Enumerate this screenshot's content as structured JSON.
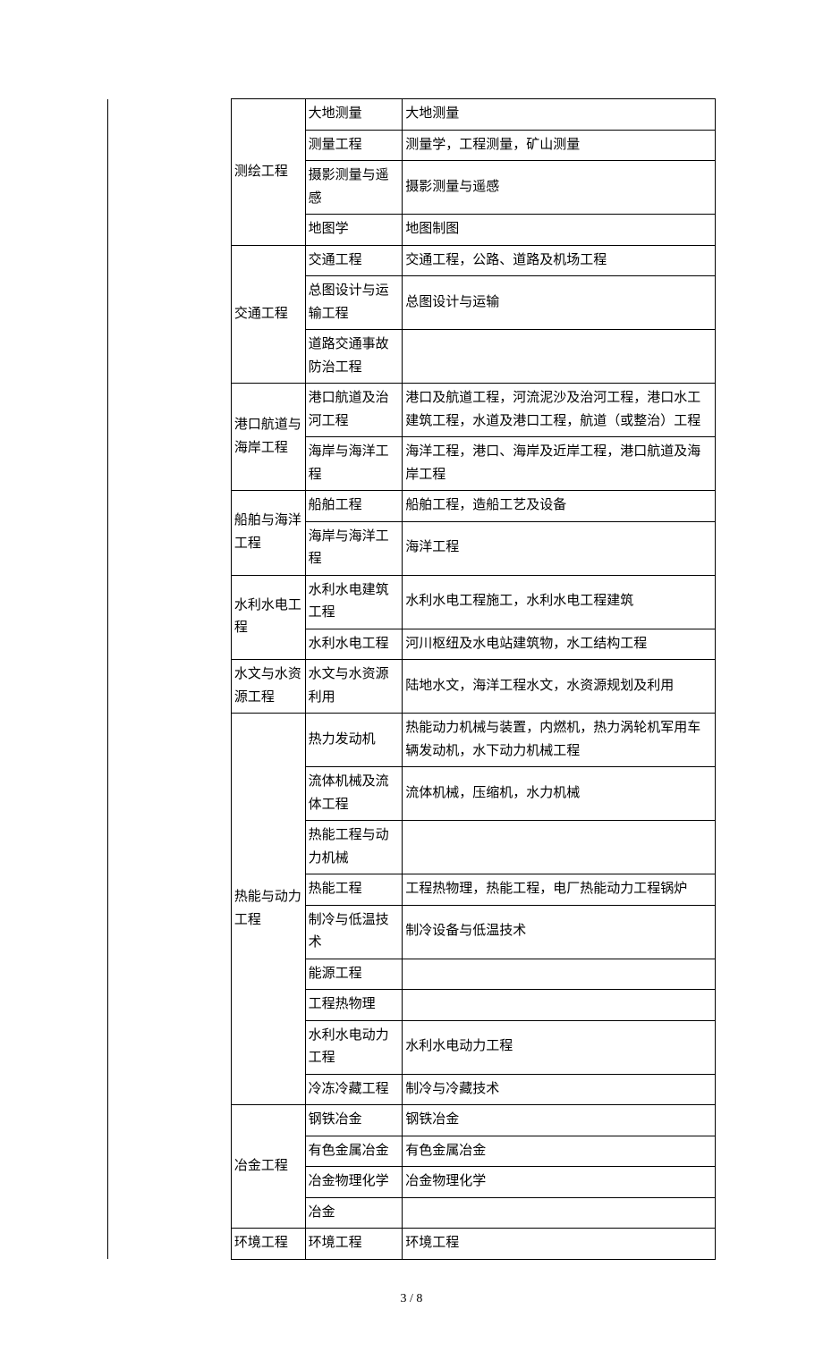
{
  "table": {
    "columns_width_pct": [
      20,
      12,
      16,
      52
    ],
    "fontsize": 15,
    "line_height": 1.7,
    "border_color": "#000000",
    "background_color": "#ffffff",
    "text_color": "#000000",
    "rows": [
      {
        "col1": "",
        "col1_rowspan": 31,
        "col2": "测绘工程",
        "col2_rowspan": 4,
        "col3": "大地测量",
        "col4": "大地测量"
      },
      {
        "col3": "测量工程",
        "col4": "测量学，工程测量，矿山测量"
      },
      {
        "col3": "摄影测量与遥感",
        "col4": "摄影测量与遥感"
      },
      {
        "col3": "地图学",
        "col4": "地图制图"
      },
      {
        "col2": "交通工程",
        "col2_rowspan": 3,
        "col3": "交通工程",
        "col4": "交通工程，公路、道路及机场工程"
      },
      {
        "col3": "总图设计与运输工程",
        "col4": "总图设计与运输"
      },
      {
        "col3": "道路交通事故防治工程",
        "col4": ""
      },
      {
        "col2": "港口航道与海岸工程",
        "col2_rowspan": 2,
        "col3": "港口航道及治河工程",
        "col4": "港口及航道工程，河流泥沙及治河工程，港口水工建筑工程，水道及港口工程，航道（或整治）工程"
      },
      {
        "col3": "海岸与海洋工程",
        "col4": "海洋工程，港口、海岸及近岸工程，港口航道及海岸工程"
      },
      {
        "col2": "船舶与海洋工程",
        "col2_rowspan": 2,
        "col3": "船舶工程",
        "col4": "船舶工程，造船工艺及设备"
      },
      {
        "col3": "海岸与海洋工程",
        "col4": "海洋工程"
      },
      {
        "col2": "水利水电工程",
        "col2_rowspan": 2,
        "col3": "水利水电建筑工程",
        "col4": "水利水电工程施工，水利水电工程建筑"
      },
      {
        "col3": "水利水电工程",
        "col4": "河川枢纽及水电站建筑物，水工结构工程"
      },
      {
        "col2": "水文与水资源工程",
        "col2_rowspan": 1,
        "col3": "水文与水资源利用",
        "col4": "陆地水文，海洋工程水文，水资源规划及利用"
      },
      {
        "col2": "热能与动力工程",
        "col2_rowspan": 9,
        "col3": "热力发动机",
        "col4": "热能动力机械与装置，内燃机，热力涡轮机军用车辆发动机，水下动力机械工程"
      },
      {
        "col3": "流体机械及流体工程",
        "col4": "流体机械，压缩机，水力机械"
      },
      {
        "col3": "热能工程与动力机械",
        "col4": ""
      },
      {
        "col3": "热能工程",
        "col4": "工程热物理，热能工程，电厂热能动力工程锅炉"
      },
      {
        "col3": "制冷与低温技术",
        "col4": "制冷设备与低温技术"
      },
      {
        "col3": "能源工程",
        "col4": ""
      },
      {
        "col3": "工程热物理",
        "col4": ""
      },
      {
        "col3": "水利水电动力工程",
        "col4": "水利水电动力工程"
      },
      {
        "col3": "冷冻冷藏工程",
        "col4": "制冷与冷藏技术"
      },
      {
        "col2": "冶金工程",
        "col2_rowspan": 4,
        "col3": "钢铁冶金",
        "col4": "钢铁冶金"
      },
      {
        "col3": "有色金属冶金",
        "col4": "有色金属冶金"
      },
      {
        "col3": "冶金物理化学",
        "col4": "冶金物理化学"
      },
      {
        "col3": "冶金",
        "col4": ""
      },
      {
        "col2": "环境工程",
        "col2_rowspan": 1,
        "col3": "环境工程",
        "col4": "环境工程"
      }
    ]
  },
  "page_number": "3 / 8"
}
